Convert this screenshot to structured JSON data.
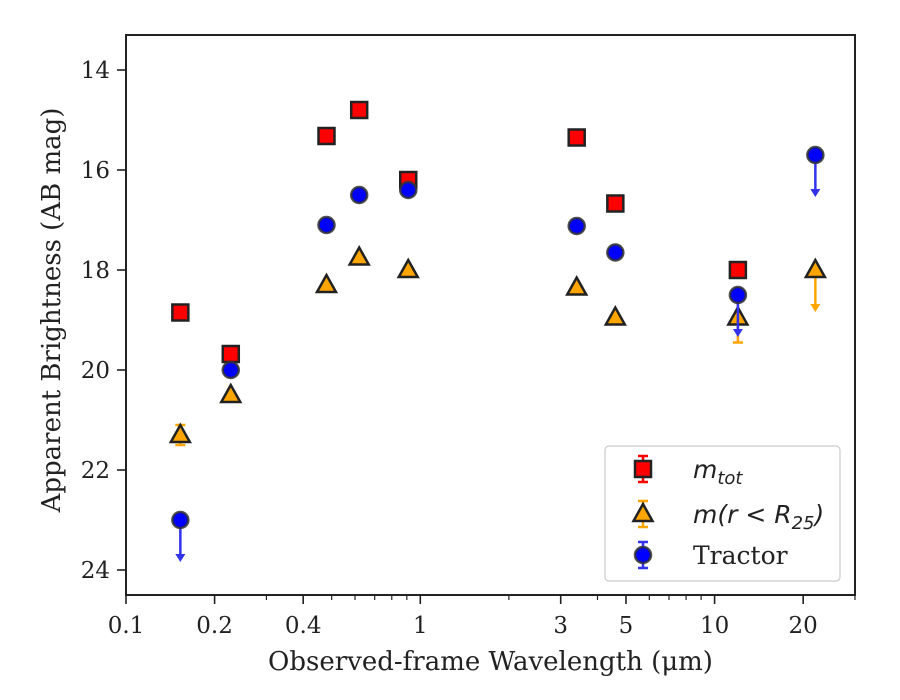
{
  "chart_data": {
    "type": "scatter",
    "xlabel": "Observed-frame Wavelength (μm)",
    "ylabel": "Apparent Brightness (AB mag)",
    "xscale": "log",
    "xlim": [
      0.1,
      30
    ],
    "ylim": [
      24.5,
      13.3
    ],
    "y_inverted": true,
    "grid": false,
    "legend_position": "bottom-right",
    "x_ticks": [
      {
        "value": 0.1,
        "label": "0.1"
      },
      {
        "value": 0.2,
        "label": "0.2"
      },
      {
        "value": 0.4,
        "label": "0.4"
      },
      {
        "value": 1,
        "label": "1"
      },
      {
        "value": 3,
        "label": "3"
      },
      {
        "value": 5,
        "label": "5"
      },
      {
        "value": 10,
        "label": "10"
      },
      {
        "value": 20,
        "label": "20"
      }
    ],
    "y_ticks": [
      {
        "value": 14,
        "label": "14"
      },
      {
        "value": 16,
        "label": "16"
      },
      {
        "value": 18,
        "label": "18"
      },
      {
        "value": 20,
        "label": "20"
      },
      {
        "value": 22,
        "label": "22"
      },
      {
        "value": 24,
        "label": "24"
      }
    ],
    "series": [
      {
        "name": "m_tot",
        "legend_main": "m",
        "legend_sub": "tot",
        "marker": "square",
        "color": "#ff0000",
        "err_color": "#ff0000",
        "points": [
          {
            "x": 0.153,
            "y": 18.85
          },
          {
            "x": 0.227,
            "y": 19.68
          },
          {
            "x": 0.48,
            "y": 15.32
          },
          {
            "x": 0.62,
            "y": 14.8
          },
          {
            "x": 0.91,
            "y": 16.2
          },
          {
            "x": 3.4,
            "y": 15.35
          },
          {
            "x": 4.6,
            "y": 16.67
          },
          {
            "x": 12,
            "y": 18.0
          }
        ]
      },
      {
        "name": "m(r < R25)",
        "legend_main": "m(r < R",
        "legend_sub": "25",
        "legend_end": ")",
        "marker": "triangle",
        "color": "#ffa500",
        "err_color": "#ffa500",
        "points": [
          {
            "x": 0.153,
            "y": 21.3,
            "err": 0.2
          },
          {
            "x": 0.227,
            "y": 20.5
          },
          {
            "x": 0.48,
            "y": 18.3
          },
          {
            "x": 0.62,
            "y": 17.75
          },
          {
            "x": 0.91,
            "y": 18.0
          },
          {
            "x": 3.4,
            "y": 18.35
          },
          {
            "x": 4.6,
            "y": 18.95
          },
          {
            "x": 12,
            "y": 18.95,
            "err": 0.5
          },
          {
            "x": 22,
            "y": 18.0,
            "upper_limit": true
          }
        ]
      },
      {
        "name": "Tractor",
        "legend_main": "Tractor",
        "marker": "circle",
        "color": "#0000ff",
        "err_color": "#3333ee",
        "points": [
          {
            "x": 0.153,
            "y": 23.0,
            "upper_limit": true
          },
          {
            "x": 0.227,
            "y": 20.0
          },
          {
            "x": 0.48,
            "y": 17.1
          },
          {
            "x": 0.62,
            "y": 16.5
          },
          {
            "x": 0.91,
            "y": 16.4
          },
          {
            "x": 3.4,
            "y": 17.12
          },
          {
            "x": 4.6,
            "y": 17.65
          },
          {
            "x": 12,
            "y": 18.5,
            "upper_limit": true
          },
          {
            "x": 22,
            "y": 15.7,
            "upper_limit": true
          }
        ]
      }
    ]
  }
}
